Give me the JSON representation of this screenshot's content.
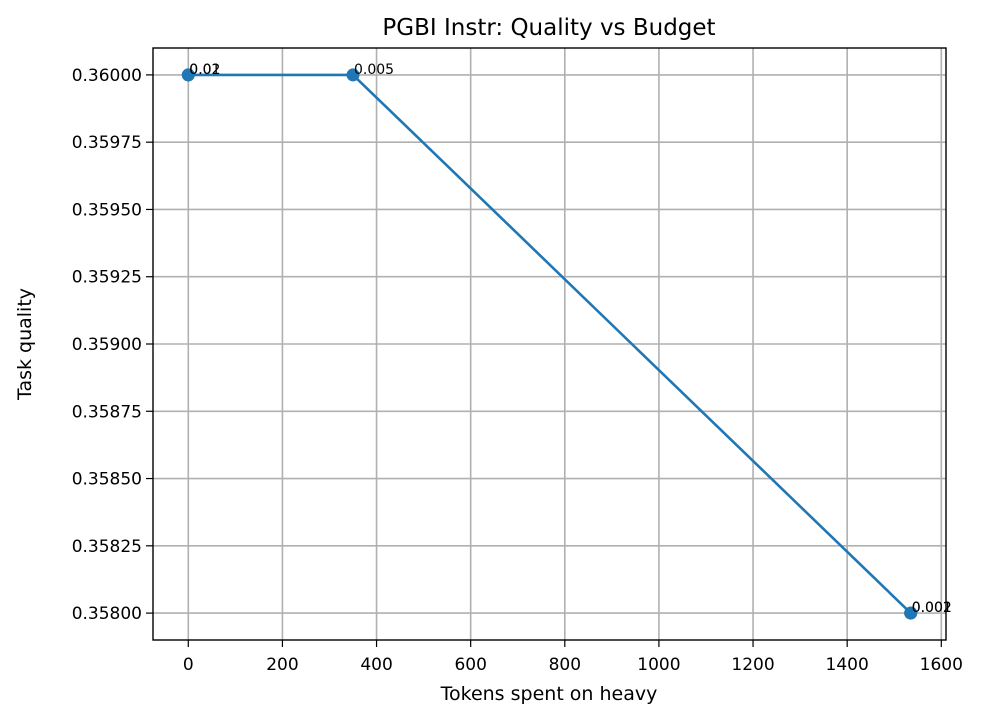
{
  "chart_data": {
    "type": "line",
    "title": "PGBI Instr: Quality vs Budget",
    "xlabel": "Tokens spent on heavy",
    "ylabel": "Task quality",
    "xlim": [
      -75,
      1610
    ],
    "ylim": [
      0.3579,
      0.3601
    ],
    "xticks": [
      0,
      200,
      400,
      600,
      800,
      1000,
      1200,
      1400,
      1600
    ],
    "xtick_labels": [
      "0",
      "200",
      "400",
      "600",
      "800",
      "1000",
      "1200",
      "1400",
      "1600"
    ],
    "yticks": [
      0.358,
      0.35825,
      0.3585,
      0.35875,
      0.359,
      0.35925,
      0.3595,
      0.35975,
      0.36
    ],
    "ytick_labels": [
      "0.35800",
      "0.35825",
      "0.35850",
      "0.35875",
      "0.35900",
      "0.35925",
      "0.35950",
      "0.35975",
      "0.36000"
    ],
    "grid": true,
    "legend": "none",
    "series": [
      {
        "color": "#1f77b4",
        "x": [
          0,
          0,
          350,
          1535,
          1535
        ],
        "y": [
          0.36,
          0.36,
          0.36,
          0.358,
          0.358
        ],
        "point_labels": [
          "0.01",
          "0.02",
          "0.005",
          "0.001",
          "0.002"
        ]
      }
    ]
  }
}
